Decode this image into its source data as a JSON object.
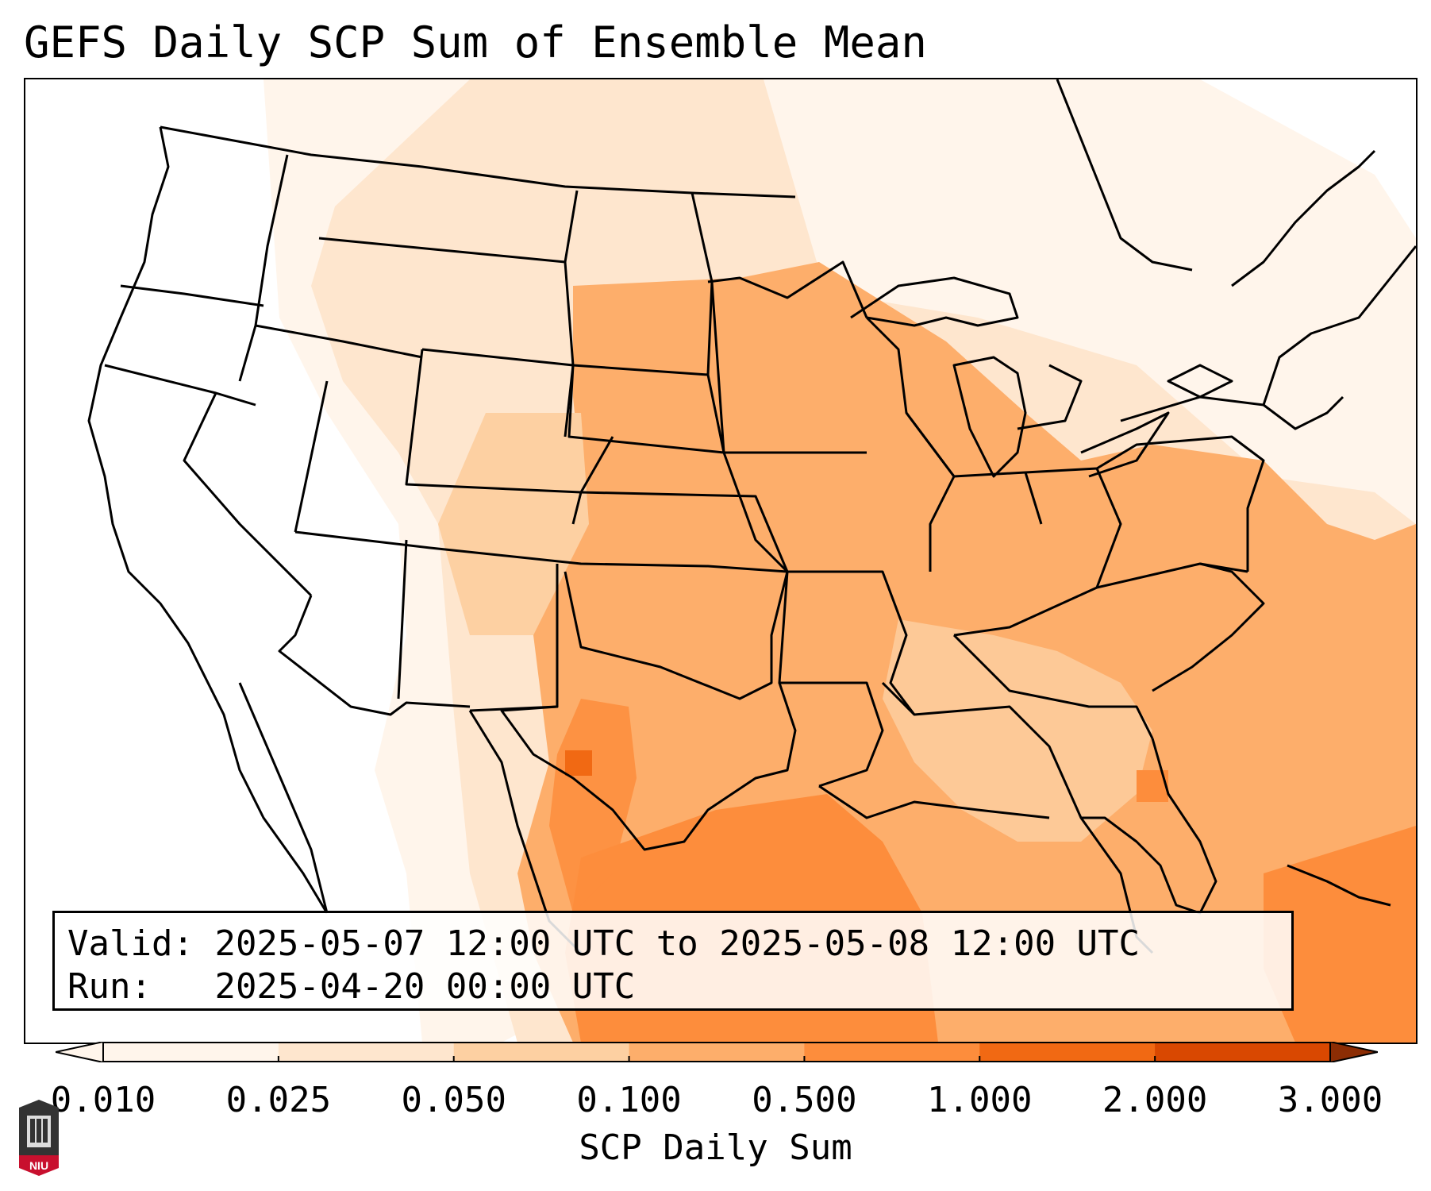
{
  "title": "GEFS Daily SCP Sum of Ensemble Mean",
  "info": {
    "valid_label": "Valid:",
    "valid_value": "2025-05-07 12:00 UTC to 2025-05-08 12:00 UTC",
    "run_label": "Run:",
    "run_value": "2025-04-20 00:00 UTC"
  },
  "colorbar": {
    "label": "SCP Daily Sum",
    "ticks": [
      "0.010",
      "0.025",
      "0.050",
      "0.100",
      "0.500",
      "1.000",
      "2.000",
      "3.000"
    ],
    "colors": [
      "#fff5eb",
      "#fee6ce",
      "#fdd0a2",
      "#fdae6b",
      "#fd8d3c",
      "#f16913",
      "#d94801",
      "#8c2d04"
    ],
    "extend": "both"
  },
  "logo_text": "NIU",
  "colors": {
    "border": "#000000",
    "lightest": "#fff5eb",
    "light": "#fee6ce",
    "mid": "#fdd0a2",
    "orange": "#fdae6b",
    "strong": "#fd8d3c",
    "deep": "#f16913"
  }
}
